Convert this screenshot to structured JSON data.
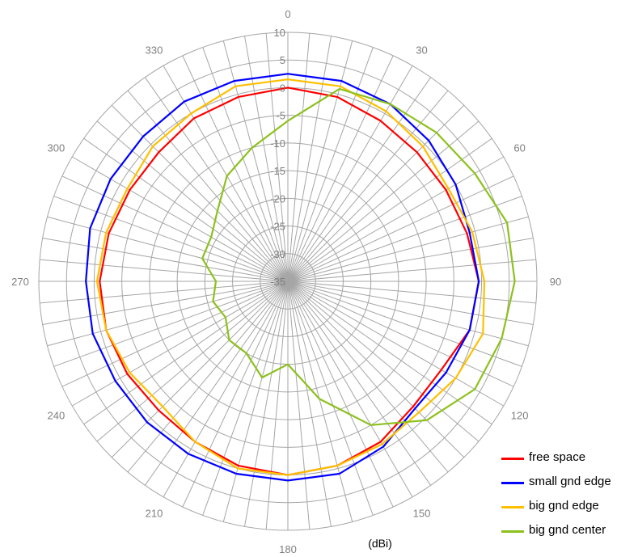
{
  "chart_data": {
    "type": "polar-line",
    "unit_label": "(dBi)",
    "radial_axis": {
      "min": -35,
      "max": 10,
      "ticks": [
        -35,
        -30,
        -25,
        -20,
        -15,
        -10,
        -5,
        0,
        5,
        10
      ],
      "tick_labels": [
        "-35",
        "-30",
        "-25",
        "-20",
        "-15",
        "-10",
        "-5",
        "0",
        "5",
        "10"
      ]
    },
    "angular_axis": {
      "direction": "clockwise",
      "zero_at": "top",
      "spoke_step_deg": 5,
      "labels": [
        {
          "angle": 0,
          "text": "0"
        },
        {
          "angle": 30,
          "text": "30"
        },
        {
          "angle": 60,
          "text": "60"
        },
        {
          "angle": 90,
          "text": "90"
        },
        {
          "angle": 120,
          "text": "120"
        },
        {
          "angle": 150,
          "text": "150"
        },
        {
          "angle": 180,
          "text": "180"
        },
        {
          "angle": 210,
          "text": "210"
        },
        {
          "angle": 240,
          "text": "240"
        },
        {
          "angle": 270,
          "text": "270"
        },
        {
          "angle": 300,
          "text": "300"
        },
        {
          "angle": 330,
          "text": "330"
        }
      ]
    },
    "legend_position": "bottom-right",
    "grid": true,
    "angles": [
      0,
      15,
      30,
      45,
      60,
      75,
      90,
      105,
      120,
      135,
      150,
      165,
      180,
      195,
      210,
      225,
      240,
      255,
      270,
      285,
      300,
      315,
      330,
      345
    ],
    "series": [
      {
        "name": "free space",
        "color": "#ff0000",
        "values": [
          0,
          -0.5,
          -1.5,
          -2,
          -2,
          -1.5,
          -0.5,
          -1,
          -3,
          -3,
          -1.5,
          -0.5,
          0,
          -0.5,
          -1.5,
          -2,
          -1.5,
          -1,
          -1,
          -1.5,
          -2,
          -2,
          -1,
          -0.5
        ]
      },
      {
        "name": "small gnd edge",
        "color": "#0000ff",
        "values": [
          2.5,
          2.5,
          2,
          1,
          0,
          -1,
          -0.5,
          -1,
          -2,
          -2.5,
          -0.5,
          1,
          1,
          1,
          1,
          1,
          1,
          1.5,
          1.5,
          2,
          2,
          2,
          2.5,
          2.5
        ]
      },
      {
        "name": "big gnd edge",
        "color": "#ffc000",
        "values": [
          1.5,
          1.5,
          0.5,
          -0.5,
          -1.5,
          -0.5,
          0.5,
          1.5,
          0,
          -1.5,
          -1,
          -0.5,
          0,
          0,
          -1.5,
          -3,
          -2,
          -1,
          -0.5,
          -1,
          -1.5,
          -0.5,
          0,
          1.5
        ]
      },
      {
        "name": "big gnd center",
        "color": "#8cc11c",
        "values": [
          -6,
          1,
          2,
          3,
          4,
          6,
          6,
          5,
          4,
          0.5,
          -5,
          -13,
          -20,
          -17,
          -20,
          -20,
          -22,
          -21,
          -22,
          -19,
          -19,
          -17,
          -13,
          -10
        ]
      }
    ]
  }
}
